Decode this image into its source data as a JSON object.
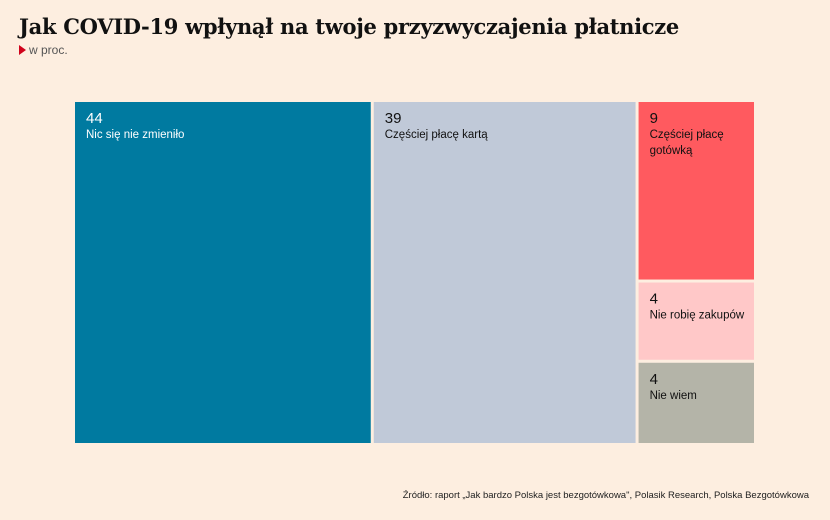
{
  "chart_data": {
    "type": "treemap",
    "title": "Jak COVID-19 wpłynął na twoje przyzwyczajenia płatnicze",
    "subtitle": "w proc.",
    "items": [
      {
        "value": 44,
        "value_label": "44",
        "label_lines": [
          "Nic się nie zmieniło"
        ],
        "color": "#007aa0",
        "text": "light"
      },
      {
        "value": 39,
        "value_label": "39",
        "label_lines": [
          "Częściej płacę kartą"
        ],
        "color": "#c0c9d8",
        "text": "dark"
      },
      {
        "value": 9,
        "value_label": "9",
        "label_lines": [
          "Częściej płacę",
          "gotówką"
        ],
        "color": "#ff5a5f",
        "text": "dark"
      },
      {
        "value": 4,
        "value_label": "4",
        "label_lines": [
          "Nie robię zakupów"
        ],
        "color": "#ffc8c8",
        "text": "dark"
      },
      {
        "value": 4,
        "value_label": "4",
        "label_lines": [
          "Nie wiem"
        ],
        "color": "#b4b4a8",
        "text": "dark"
      }
    ],
    "source": "Źródło: raport „Jak bardzo Polska jest bezgotówkowa\", Polasik Research, Polska Bezgotówkowa"
  }
}
